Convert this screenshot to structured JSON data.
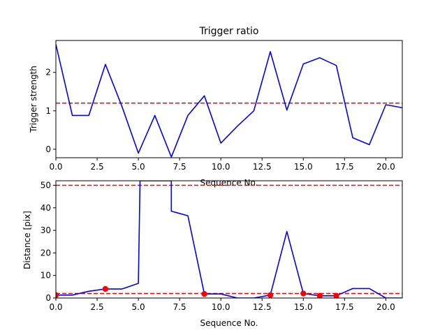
{
  "chart_data": [
    {
      "type": "line",
      "title": "Trigger ratio",
      "xlabel": "Sequence No.",
      "ylabel": "Trigger strength",
      "xlim": [
        0,
        21
      ],
      "ylim": [
        -0.22,
        2.83
      ],
      "xticks": [
        "0.0",
        "2.5",
        "5.0",
        "7.5",
        "10.0",
        "12.5",
        "15.0",
        "17.5",
        "20.0"
      ],
      "yticks": [
        "0",
        "1",
        "2"
      ],
      "series": [
        {
          "color": "#0000ff",
          "x": [
            0,
            1,
            2,
            3,
            4,
            5,
            6,
            7,
            8,
            9,
            10,
            11,
            12,
            13,
            14,
            15,
            16,
            17,
            18,
            19,
            20,
            21
          ],
          "y": [
            2.73,
            0.88,
            0.88,
            2.21,
            1.12,
            -0.1,
            0.88,
            -0.2,
            0.88,
            1.39,
            0.16,
            0.6,
            1.0,
            2.54,
            1.02,
            2.22,
            2.38,
            2.18,
            0.3,
            0.12,
            1.16,
            1.08
          ]
        }
      ],
      "hlines": [
        {
          "y": 1.2,
          "color": "#ff0000",
          "style": "dashed"
        }
      ]
    },
    {
      "type": "line",
      "title": "",
      "xlabel": "Sequence No.",
      "ylabel": "Distance [pix]",
      "xlim": [
        0,
        21
      ],
      "ylim": [
        0,
        52
      ],
      "xticks": [
        "0.0",
        "2.5",
        "5.0",
        "7.5",
        "10.0",
        "12.5",
        "15.0",
        "17.5",
        "20.0"
      ],
      "yticks": [
        "0",
        "10",
        "20",
        "30",
        "40",
        "50"
      ],
      "series": [
        {
          "color": "#0000ff",
          "x": [
            0,
            1,
            2,
            3,
            4,
            5,
            5.1,
            7,
            7,
            8,
            9,
            10,
            11,
            12,
            13,
            14,
            15,
            16,
            17,
            18,
            19,
            20,
            21
          ],
          "y": [
            1.3,
            1.3,
            3,
            4,
            4,
            6.5,
            52,
            52,
            38.5,
            36.5,
            1.8,
            1.8,
            0,
            0,
            1.3,
            29.5,
            2,
            1,
            1,
            4.2,
            4.2,
            0,
            0
          ]
        },
        {
          "type": "scatter",
          "color": "#ff0000",
          "x": [
            0,
            3,
            9,
            13,
            15,
            16,
            17
          ],
          "y": [
            1.3,
            4,
            1.8,
            1.3,
            2,
            1,
            1
          ]
        }
      ],
      "hlines": [
        {
          "y": 50,
          "color": "#ff0000",
          "style": "dashed"
        },
        {
          "y": 2,
          "color": "#ff0000",
          "style": "dashed"
        }
      ]
    }
  ]
}
